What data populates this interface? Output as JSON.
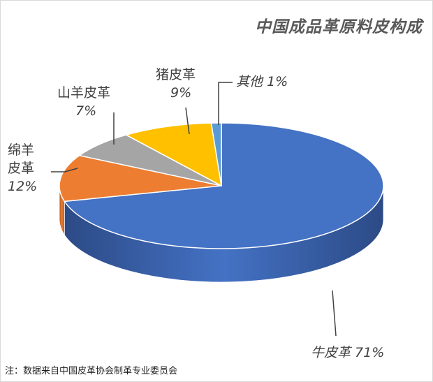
{
  "chart_data": {
    "type": "pie",
    "title": "中国成品革原料皮构成",
    "slices": [
      {
        "name": "牛皮革",
        "value": 71,
        "label": "71%",
        "color": "#4472C4",
        "side": "#2C4A86"
      },
      {
        "name": "绵羊皮革",
        "value": 12,
        "label": "12%",
        "color": "#ED7D31",
        "side": "#A8551F"
      },
      {
        "name": "山羊皮革",
        "value": 7,
        "label": "7%",
        "color": "#A5A5A5",
        "side": "#6E6E6E"
      },
      {
        "name": "猪皮革",
        "value": 9,
        "label": "9%",
        "color": "#FFC000",
        "side": "#B38600"
      },
      {
        "name": "其他",
        "value": 1,
        "label": "1%",
        "color": "#5B9BD5",
        "side": "#3A6E9E"
      }
    ]
  },
  "labels": {
    "cattle": "牛皮革 71%",
    "sheep_line1": "绵羊",
    "sheep_line2": "皮革",
    "sheep_pct": "12%",
    "goat_name": "山羊皮革",
    "goat_pct": "7%",
    "pig_name": "猪皮革",
    "pig_pct": "9%",
    "other": "其他 1%"
  },
  "footnote": "注：数据来自中国皮革协会制革专业委员会"
}
